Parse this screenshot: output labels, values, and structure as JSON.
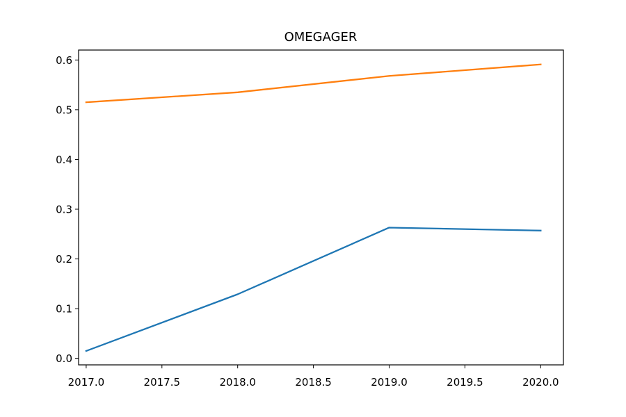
{
  "chart_data": {
    "type": "line",
    "title": "OMEGAGER",
    "xlabel": "",
    "ylabel": "",
    "xlim": [
      2016.95,
      2020.15
    ],
    "ylim": [
      -0.013,
      0.62
    ],
    "x_ticks": [
      2017.0,
      2017.5,
      2018.0,
      2018.5,
      2019.0,
      2019.5,
      2020.0
    ],
    "x_tick_labels": [
      "2017.0",
      "2017.5",
      "2018.0",
      "2018.5",
      "2019.0",
      "2019.5",
      "2020.0"
    ],
    "y_ticks": [
      0.0,
      0.1,
      0.2,
      0.3,
      0.4,
      0.5,
      0.6
    ],
    "y_tick_labels": [
      "0.0",
      "0.1",
      "0.2",
      "0.3",
      "0.4",
      "0.5",
      "0.6"
    ],
    "grid": false,
    "series": [
      {
        "color": "#1f77b4",
        "x": [
          2017,
          2018,
          2019,
          2020
        ],
        "values": [
          0.015,
          0.129,
          0.263,
          0.257
        ]
      },
      {
        "color": "#ff7f0e",
        "x": [
          2017,
          2018,
          2019,
          2020
        ],
        "values": [
          0.515,
          0.535,
          0.568,
          0.591
        ]
      }
    ]
  }
}
